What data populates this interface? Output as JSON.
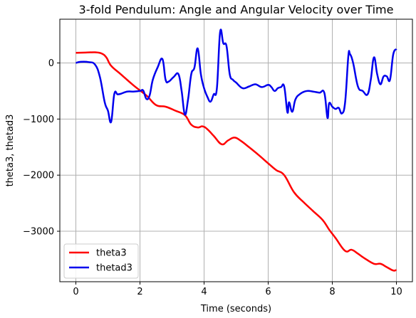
{
  "chart_data": {
    "type": "line",
    "title": "3-fold Pendulum: Angle and Angular Velocity over Time",
    "xlabel": "Time (seconds)",
    "ylabel": "theta3, thetad3",
    "xlim": [
      -0.5,
      10.5
    ],
    "ylim": [
      -3900,
      780
    ],
    "xticks": [
      0,
      2,
      4,
      6,
      8,
      10
    ],
    "yticks": [
      -3000,
      -2000,
      -1000,
      0
    ],
    "xtick_labels": [
      "0",
      "2",
      "4",
      "6",
      "8",
      "10"
    ],
    "ytick_labels": [
      "−3000",
      "−2000",
      "−1000",
      "0"
    ],
    "grid": true,
    "legend": "lower-left",
    "series": [
      {
        "name": "theta3",
        "color": "#ff0000",
        "x": [
          0,
          0.3,
          0.6,
          0.8,
          0.95,
          1.1,
          1.4,
          1.8,
          2.2,
          2.5,
          2.8,
          3.1,
          3.4,
          3.6,
          3.8,
          3.95,
          4.1,
          4.3,
          4.55,
          4.75,
          4.95,
          5.15,
          5.4,
          5.7,
          6.0,
          6.25,
          6.5,
          6.8,
          7.1,
          7.4,
          7.7,
          7.9,
          8.1,
          8.4,
          8.6,
          8.8,
          9.0,
          9.3,
          9.5,
          9.7,
          9.9,
          10.0
        ],
        "y": [
          180,
          185,
          190,
          170,
          100,
          -50,
          -200,
          -400,
          -580,
          -750,
          -780,
          -850,
          -930,
          -1100,
          -1150,
          -1130,
          -1180,
          -1300,
          -1450,
          -1380,
          -1330,
          -1390,
          -1500,
          -1640,
          -1790,
          -1910,
          -2000,
          -2300,
          -2480,
          -2640,
          -2800,
          -2970,
          -3120,
          -3350,
          -3330,
          -3400,
          -3480,
          -3580,
          -3580,
          -3640,
          -3700,
          -3690
        ]
      },
      {
        "name": "thetad3",
        "color": "#0000ee",
        "x": [
          0,
          0.15,
          0.4,
          0.6,
          0.75,
          0.9,
          1.0,
          1.1,
          1.2,
          1.3,
          1.4,
          1.6,
          1.8,
          2.0,
          2.1,
          2.2,
          2.3,
          2.4,
          2.55,
          2.7,
          2.8,
          2.9,
          3.05,
          3.2,
          3.3,
          3.4,
          3.5,
          3.6,
          3.7,
          3.8,
          3.9,
          4.0,
          4.1,
          4.2,
          4.3,
          4.4,
          4.5,
          4.6,
          4.7,
          4.8,
          4.9,
          5.0,
          5.2,
          5.4,
          5.6,
          5.8,
          6.0,
          6.1,
          6.2,
          6.3,
          6.4,
          6.5,
          6.6,
          6.65,
          6.75,
          6.85,
          7.0,
          7.2,
          7.4,
          7.6,
          7.75,
          7.85,
          7.9,
          8.0,
          8.1,
          8.2,
          8.3,
          8.4,
          8.5,
          8.55,
          8.65,
          8.8,
          8.95,
          9.1,
          9.2,
          9.3,
          9.4,
          9.5,
          9.6,
          9.7,
          9.8,
          9.9,
          10.0
        ],
        "y": [
          0,
          20,
          15,
          -30,
          -250,
          -700,
          -850,
          -1050,
          -550,
          -560,
          -550,
          -510,
          -510,
          -500,
          -490,
          -640,
          -580,
          -300,
          -80,
          70,
          -300,
          -330,
          -250,
          -200,
          -500,
          -920,
          -650,
          -200,
          -80,
          260,
          -200,
          -450,
          -600,
          -690,
          -560,
          -450,
          550,
          350,
          300,
          -200,
          -300,
          -350,
          -450,
          -420,
          -380,
          -430,
          -390,
          -430,
          -500,
          -450,
          -430,
          -420,
          -880,
          -700,
          -870,
          -650,
          -550,
          -500,
          -510,
          -530,
          -530,
          -980,
          -720,
          -780,
          -820,
          -800,
          -900,
          -700,
          120,
          160,
          0,
          -420,
          -500,
          -560,
          -300,
          100,
          -200,
          -380,
          -240,
          -240,
          -300,
          150,
          250
        ]
      }
    ]
  }
}
